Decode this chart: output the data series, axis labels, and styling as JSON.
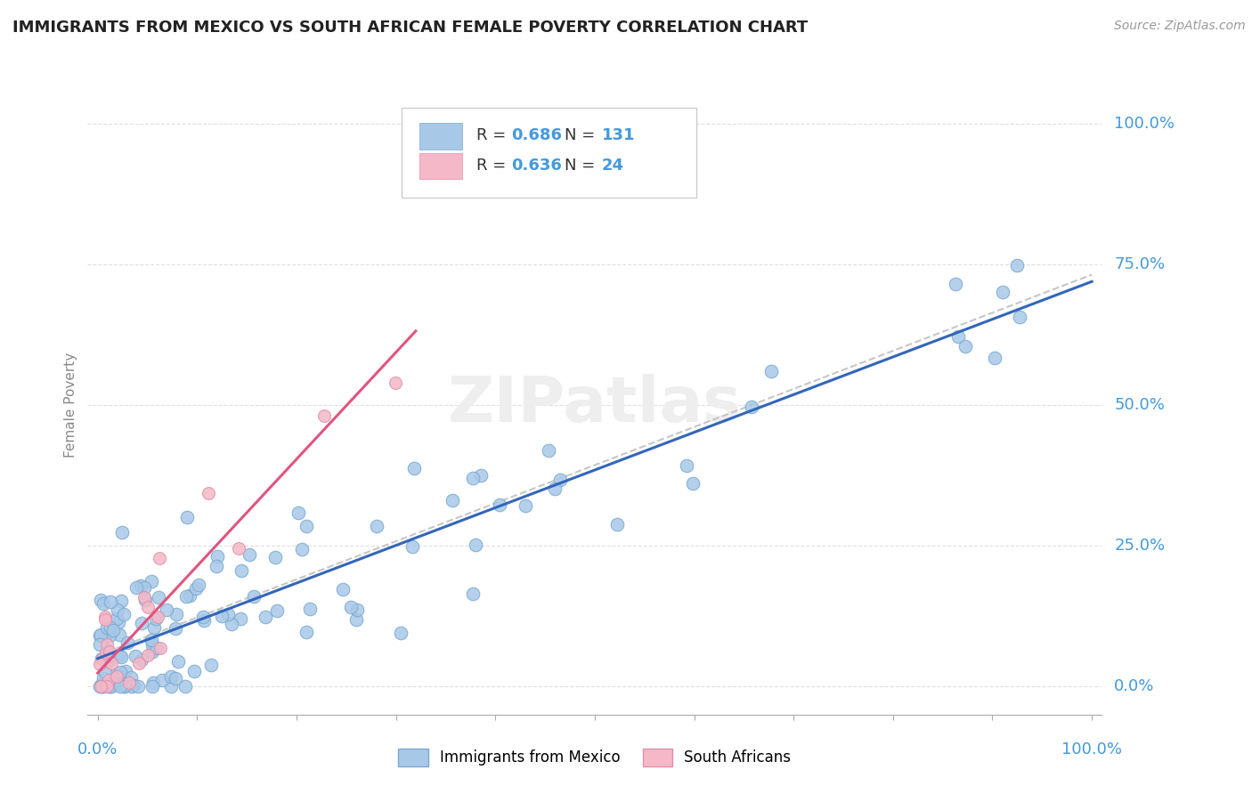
{
  "title": "IMMIGRANTS FROM MEXICO VS SOUTH AFRICAN FEMALE POVERTY CORRELATION CHART",
  "source": "Source: ZipAtlas.com",
  "ylabel": "Female Poverty",
  "yticks_labels": [
    "0.0%",
    "25.0%",
    "50.0%",
    "75.0%",
    "100.0%"
  ],
  "ytick_vals": [
    0.0,
    0.25,
    0.5,
    0.75,
    1.0
  ],
  "blue_R": 0.686,
  "blue_N": 131,
  "pink_R": 0.636,
  "pink_N": 24,
  "blue_color": "#a8c8e8",
  "blue_edge_color": "#7aaad0",
  "blue_line_color": "#3366bb",
  "pink_color": "#f4b8c8",
  "pink_edge_color": "#e090a8",
  "pink_line_color": "#e05580",
  "dashed_line_color": "#c0c0c0",
  "legend_blue_label": "Immigrants from Mexico",
  "legend_pink_label": "South Africans",
  "background_color": "#ffffff",
  "grid_color": "#d8d8d8",
  "title_color": "#222222",
  "axis_label_color": "#4499dd",
  "watermark": "ZIPatlas",
  "watermark_color": "#eeeeee"
}
